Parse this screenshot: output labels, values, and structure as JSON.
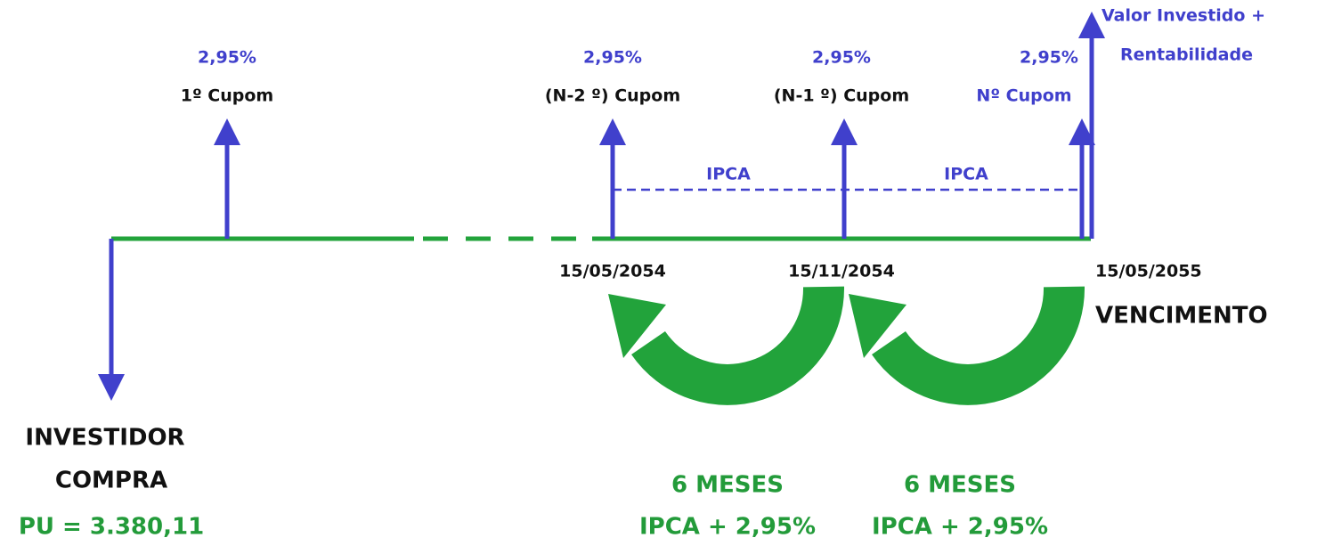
{
  "final_payment": {
    "line1": "Valor Investido +",
    "line2": "Rentabilidade"
  },
  "coupons": [
    {
      "rate": "2,95%",
      "label": "1º Cupom"
    },
    {
      "rate": "2,95%",
      "label": "(N-2 º) Cupom"
    },
    {
      "rate": "2,95%",
      "label": "(N-1 º) Cupom"
    },
    {
      "rate": "2,95%",
      "label": "Nº Cupom"
    }
  ],
  "ipca_labels": [
    "IPCA",
    "IPCA"
  ],
  "dates": [
    "15/05/2054",
    "15/11/2054",
    "15/05/2055"
  ],
  "maturity": "VENCIMENTO",
  "investor": {
    "line1": "INVESTIDOR",
    "line2": "COMPRA",
    "price": "PU = 3.380,11"
  },
  "periods": [
    {
      "months": "6 MESES",
      "rate": "IPCA + 2,95%"
    },
    {
      "months": "6 MESES",
      "rate": "IPCA + 2,95%"
    }
  ]
}
